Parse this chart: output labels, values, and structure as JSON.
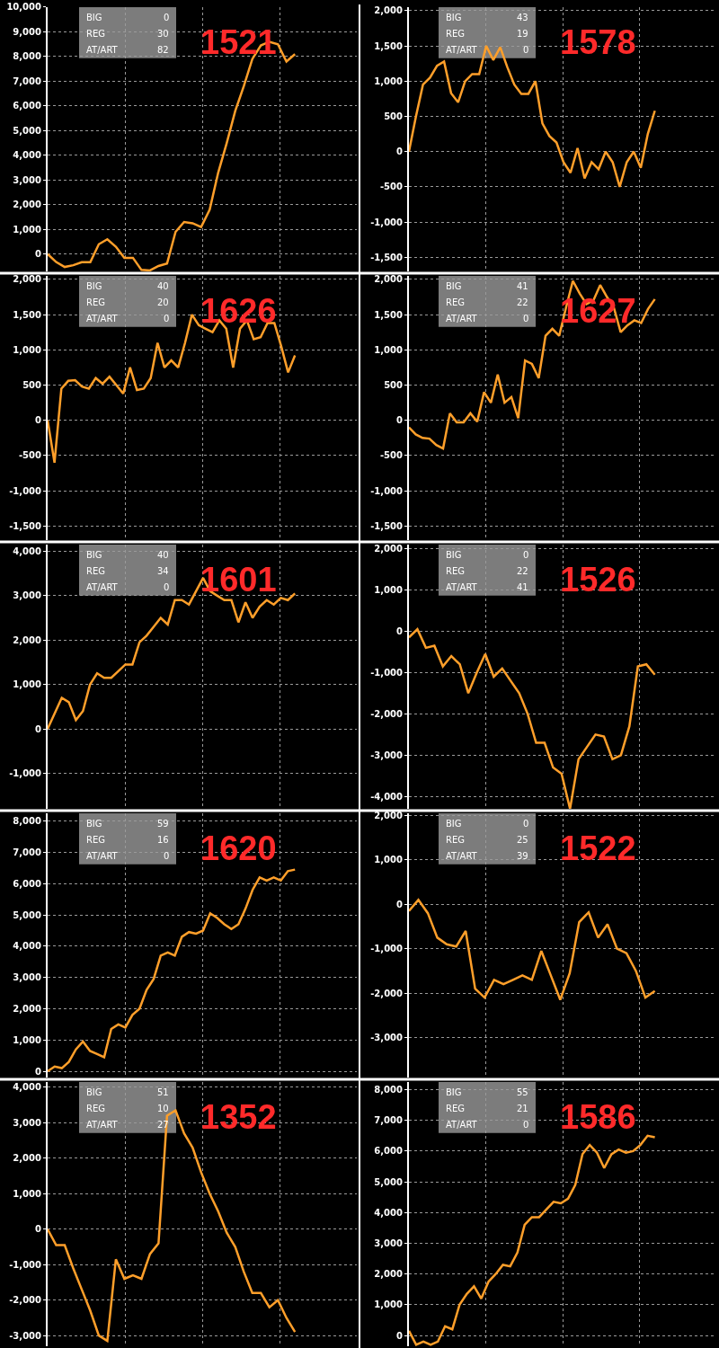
{
  "chart_data": [
    {
      "type": "line",
      "title": "1521",
      "annotations": [
        "BIG",
        "0",
        "REG",
        "30",
        "AT/ART",
        "82"
      ],
      "grid": true,
      "tick_labels": "y",
      "categories": [
        null,
        null,
        null,
        null,
        null,
        null,
        null,
        null,
        null,
        null,
        null,
        null,
        null,
        null,
        null,
        null,
        null,
        null,
        null,
        null,
        null,
        null,
        null,
        null,
        null,
        null,
        null,
        null,
        null,
        null
      ],
      "series": [
        {
          "color": "#ff9f2a",
          "values": [
            0,
            -320,
            -520,
            -450,
            -330,
            -330,
            400,
            600,
            300,
            -150,
            -150,
            -640,
            -660,
            -480,
            -380,
            900,
            1300,
            1250,
            1100,
            1800,
            3300,
            4500,
            5800,
            6800,
            7900,
            8450,
            8600,
            8500,
            7800,
            8100
          ]
        }
      ],
      "ylim": [
        -700,
        10000
      ],
      "yticks": [
        0,
        {
          "value": 1000,
          "label": "1,000"
        },
        {
          "value": 2000,
          "label": "2,000"
        },
        {
          "value": 3000,
          "label": "3,000"
        },
        {
          "value": 4000,
          "label": "4,000"
        },
        {
          "value": 5000,
          "label": "5,000"
        },
        {
          "value": 6000,
          "label": "6,000"
        },
        {
          "value": 7000,
          "label": "7,000"
        },
        {
          "value": 8000,
          "label": "8,000"
        },
        {
          "value": 9000,
          "label": "9,000"
        },
        {
          "value": 10000,
          "label": "10,000"
        }
      ]
    },
    {
      "type": "line",
      "title": "1578",
      "annotations": [
        "BIG",
        "43",
        "REG",
        "19",
        "AT/ART",
        "0"
      ],
      "grid": true,
      "tick_labels": "y",
      "categories": [
        null,
        null,
        null,
        null,
        null,
        null,
        null,
        null,
        null,
        null,
        null,
        null,
        null,
        null,
        null,
        null,
        null,
        null,
        null,
        null,
        null,
        null,
        null,
        null,
        null,
        null,
        null,
        null,
        null,
        null,
        null,
        null,
        null,
        null,
        null,
        null
      ],
      "series": [
        {
          "color": "#ff9f2a",
          "values": [
            0,
            500,
            950,
            1050,
            1220,
            1280,
            830,
            700,
            1000,
            1100,
            1100,
            1500,
            1300,
            1480,
            1200,
            950,
            820,
            820,
            1000,
            400,
            220,
            130,
            -150,
            -300,
            50,
            -380,
            -150,
            -250,
            0,
            -150,
            -500,
            -150,
            0,
            -230,
            250,
            580
          ]
        }
      ],
      "ylim": [
        -1700,
        2050
      ],
      "yticks": [
        {
          "value": -1500,
          "label": "-1,500"
        },
        {
          "value": -1000,
          "label": "-1,000"
        },
        -500,
        0,
        500,
        {
          "value": 1000,
          "label": "1,000"
        },
        {
          "value": 1500,
          "label": "1,500"
        },
        {
          "value": 2000,
          "label": "2,000"
        }
      ]
    },
    {
      "type": "line",
      "title": "1626",
      "annotations": [
        "BIG",
        "40",
        "REG",
        "20",
        "AT/ART",
        "0"
      ],
      "grid": true,
      "tick_labels": "y",
      "categories": [
        null,
        null,
        null,
        null,
        null,
        null,
        null,
        null,
        null,
        null,
        null,
        null,
        null,
        null,
        null,
        null,
        null,
        null,
        null,
        null,
        null,
        null,
        null,
        null,
        null,
        null,
        null,
        null,
        null,
        null,
        null,
        null,
        null,
        null,
        null,
        null,
        null
      ],
      "series": [
        {
          "color": "#ff9f2a",
          "values": [
            0,
            -600,
            450,
            560,
            570,
            480,
            450,
            600,
            520,
            620,
            500,
            380,
            750,
            430,
            450,
            600,
            1100,
            750,
            850,
            750,
            1100,
            1500,
            1350,
            1300,
            1250,
            1420,
            1300,
            750,
            1300,
            1420,
            1150,
            1180,
            1380,
            1380,
            1050,
            680,
            920
          ]
        }
      ],
      "ylim": [
        -1700,
        2050
      ],
      "yticks": [
        {
          "value": -1500,
          "label": "-1,500"
        },
        {
          "value": -1000,
          "label": "-1,000"
        },
        -500,
        0,
        500,
        {
          "value": 1000,
          "label": "1,000"
        },
        {
          "value": 1500,
          "label": "1,500"
        },
        {
          "value": 2000,
          "label": "2,000"
        }
      ]
    },
    {
      "type": "line",
      "title": "1627",
      "annotations": [
        "BIG",
        "41",
        "REG",
        "22",
        "AT/ART",
        "0"
      ],
      "grid": true,
      "tick_labels": "y",
      "categories": [
        null,
        null,
        null,
        null,
        null,
        null,
        null,
        null,
        null,
        null,
        null,
        null,
        null,
        null,
        null,
        null,
        null,
        null,
        null,
        null,
        null,
        null,
        null,
        null,
        null,
        null,
        null,
        null,
        null,
        null,
        null,
        null,
        null,
        null,
        null,
        null,
        null
      ],
      "series": [
        {
          "color": "#ff9f2a",
          "values": [
            -100,
            -200,
            -250,
            -260,
            -350,
            -400,
            100,
            -30,
            -30,
            100,
            -20,
            400,
            250,
            650,
            250,
            330,
            30,
            850,
            800,
            600,
            1200,
            1300,
            1200,
            1600,
            1980,
            1800,
            1650,
            1700,
            1920,
            1750,
            1600,
            1250,
            1350,
            1420,
            1380,
            1580,
            1720
          ]
        }
      ],
      "ylim": [
        -1700,
        2050
      ],
      "yticks": [
        {
          "value": -1500,
          "label": "-1,500"
        },
        {
          "value": -1000,
          "label": "-1,000"
        },
        -500,
        0,
        500,
        {
          "value": 1000,
          "label": "1,000"
        },
        {
          "value": 1500,
          "label": "1,500"
        },
        {
          "value": 2000,
          "label": "2,000"
        }
      ]
    },
    {
      "type": "line",
      "title": "1601",
      "annotations": [
        "BIG",
        "40",
        "REG",
        "34",
        "AT/ART",
        "0"
      ],
      "grid": true,
      "tick_labels": "y",
      "categories": [
        null,
        null,
        null,
        null,
        null,
        null,
        null,
        null,
        null,
        null,
        null,
        null,
        null,
        null,
        null,
        null,
        null,
        null,
        null,
        null,
        null,
        null,
        null,
        null,
        null,
        null,
        null,
        null,
        null,
        null,
        null,
        null,
        null,
        null,
        null,
        null
      ],
      "series": [
        {
          "color": "#ff9f2a",
          "values": [
            0,
            350,
            700,
            600,
            200,
            400,
            1000,
            1250,
            1150,
            1150,
            1300,
            1450,
            1450,
            1950,
            2100,
            2300,
            2500,
            2350,
            2900,
            2900,
            2800,
            3100,
            3400,
            3100,
            3000,
            2900,
            2900,
            2400,
            2850,
            2500,
            2750,
            2900,
            2800,
            2950,
            2900,
            3050
          ]
        }
      ],
      "ylim": [
        -1800,
        4150
      ],
      "yticks": [
        {
          "value": -1000,
          "label": "-1,000"
        },
        0,
        {
          "value": 1000,
          "label": "1,000"
        },
        {
          "value": 2000,
          "label": "2,000"
        },
        {
          "value": 3000,
          "label": "3,000"
        },
        {
          "value": 4000,
          "label": "4,000"
        }
      ]
    },
    {
      "type": "line",
      "title": "1526",
      "annotations": [
        "BIG",
        "0",
        "REG",
        "22",
        "AT/ART",
        "41"
      ],
      "grid": true,
      "tick_labels": "y",
      "categories": [
        null,
        null,
        null,
        null,
        null,
        null,
        null,
        null,
        null,
        null,
        null,
        null,
        null,
        null,
        null,
        null,
        null,
        null,
        null,
        null,
        null,
        null,
        null,
        null,
        null,
        null,
        null,
        null,
        null,
        null
      ],
      "series": [
        {
          "color": "#ff9f2a",
          "values": [
            -150,
            50,
            -400,
            -350,
            -850,
            -600,
            -800,
            -1500,
            -1000,
            -550,
            -1100,
            -900,
            -1200,
            -1500,
            -2000,
            -2700,
            -2700,
            -3300,
            -3450,
            -4300,
            -3100,
            -2800,
            -2500,
            -2550,
            -3100,
            -3000,
            -2300,
            -850,
            -800,
            -1050
          ]
        }
      ],
      "ylim": [
        -4300,
        2100
      ],
      "yticks": [
        {
          "value": -4000,
          "label": "-4,000"
        },
        {
          "value": -3000,
          "label": "-3,000"
        },
        {
          "value": -2000,
          "label": "-2,000"
        },
        {
          "value": -1000,
          "label": "-1,000"
        },
        0,
        {
          "value": 1000,
          "label": "1,000"
        },
        {
          "value": 2000,
          "label": "2,000"
        }
      ]
    },
    {
      "type": "line",
      "title": "1620",
      "annotations": [
        "BIG",
        "59",
        "REG",
        "16",
        "AT/ART",
        "0"
      ],
      "grid": true,
      "tick_labels": "y",
      "categories": [
        null,
        null,
        null,
        null,
        null,
        null,
        null,
        null,
        null,
        null,
        null,
        null,
        null,
        null,
        null,
        null,
        null,
        null,
        null,
        null,
        null,
        null,
        null,
        null,
        null,
        null,
        null,
        null,
        null,
        null,
        null,
        null,
        null,
        null,
        null,
        null
      ],
      "series": [
        {
          "color": "#ff9f2a",
          "values": [
            0,
            150,
            100,
            300,
            700,
            950,
            650,
            550,
            450,
            1350,
            1500,
            1400,
            1800,
            2000,
            2600,
            2950,
            3700,
            3800,
            3700,
            4300,
            4450,
            4400,
            4500,
            5050,
            4900,
            4700,
            4550,
            4700,
            5200,
            5800,
            6200,
            6100,
            6200,
            6100,
            6400,
            6450
          ]
        }
      ],
      "ylim": [
        -200,
        8250
      ],
      "yticks": [
        0,
        {
          "value": 1000,
          "label": "1,000"
        },
        {
          "value": 2000,
          "label": "2,000"
        },
        {
          "value": 3000,
          "label": "3,000"
        },
        {
          "value": 4000,
          "label": "4,000"
        },
        {
          "value": 5000,
          "label": "5,000"
        },
        {
          "value": 6000,
          "label": "6,000"
        },
        {
          "value": 7000,
          "label": "7,000"
        },
        {
          "value": 8000,
          "label": "8,000"
        }
      ]
    },
    {
      "type": "line",
      "title": "1522",
      "annotations": [
        "BIG",
        "0",
        "REG",
        "25",
        "AT/ART",
        "39"
      ],
      "grid": true,
      "tick_labels": "y",
      "categories": [
        null,
        null,
        null,
        null,
        null,
        null,
        null,
        null,
        null,
        null,
        null,
        null,
        null,
        null,
        null,
        null,
        null,
        null,
        null,
        null,
        null,
        null,
        null,
        null,
        null,
        null,
        null
      ],
      "series": [
        {
          "color": "#ff9f2a",
          "values": [
            -150,
            100,
            -200,
            -750,
            -900,
            -950,
            -600,
            -1900,
            -2100,
            -1700,
            -1800,
            -1700,
            -1600,
            -1700,
            -1050,
            -1600,
            -2150,
            -1550,
            -400,
            -180,
            -750,
            -450,
            -1000,
            -1100,
            -1500,
            -2100,
            -1950
          ]
        }
      ],
      "ylim": [
        -3900,
        2050
      ],
      "yticks": [
        {
          "value": -3000,
          "label": "-3,000"
        },
        {
          "value": -2000,
          "label": "-2,000"
        },
        {
          "value": -1000,
          "label": "-1,000"
        },
        0,
        {
          "value": 1000,
          "label": "1,000"
        },
        {
          "value": 2000,
          "label": "2,000"
        }
      ]
    },
    {
      "type": "line",
      "title": "1352",
      "annotations": [
        "BIG",
        "51",
        "REG",
        "10",
        "AT/ART",
        "27"
      ],
      "grid": true,
      "tick_labels": "y",
      "categories": [
        null,
        null,
        null,
        null,
        null,
        null,
        null,
        null,
        null,
        null,
        null,
        null,
        null,
        null,
        null,
        null,
        null,
        null,
        null,
        null,
        null,
        null,
        null,
        null,
        null,
        null,
        null,
        null,
        null,
        null
      ],
      "series": [
        {
          "color": "#ff9f2a",
          "values": [
            0,
            -450,
            -450,
            -1100,
            -1700,
            -2300,
            -3000,
            -3150,
            -850,
            -1400,
            -1300,
            -1400,
            -700,
            -400,
            3200,
            3350,
            2700,
            2300,
            1600,
            1000,
            500,
            -100,
            -500,
            -1200,
            -1800,
            -1800,
            -2200,
            -2000,
            -2500,
            -2900
          ]
        }
      ],
      "ylim": [
        -3300,
        4150
      ],
      "yticks": [
        {
          "value": -3000,
          "label": "-3,000"
        },
        {
          "value": -2000,
          "label": "-2,000"
        },
        {
          "value": -1000,
          "label": "-1,000"
        },
        0,
        {
          "value": 1000,
          "label": "1,000"
        },
        {
          "value": 2000,
          "label": "2,000"
        },
        {
          "value": 3000,
          "label": "3,000"
        },
        {
          "value": 4000,
          "label": "4,000"
        }
      ]
    },
    {
      "type": "line",
      "title": "1586",
      "annotations": [
        "BIG",
        "55",
        "REG",
        "21",
        "AT/ART",
        "0"
      ],
      "grid": true,
      "tick_labels": "y",
      "categories": [
        null,
        null,
        null,
        null,
        null,
        null,
        null,
        null,
        null,
        null,
        null,
        null,
        null,
        null,
        null,
        null,
        null,
        null,
        null,
        null,
        null,
        null,
        null,
        null,
        null,
        null,
        null,
        null,
        null,
        null,
        null,
        null,
        null,
        null,
        null
      ],
      "series": [
        {
          "color": "#ff9f2a",
          "values": [
            150,
            -300,
            -200,
            -300,
            -200,
            300,
            200,
            1000,
            1350,
            1600,
            1200,
            1750,
            2000,
            2300,
            2250,
            2700,
            3600,
            3850,
            3850,
            4100,
            4350,
            4300,
            4450,
            4900,
            5900,
            6200,
            5950,
            5450,
            5900,
            6050,
            5950,
            6000,
            6200,
            6500,
            6450
          ]
        }
      ],
      "ylim": [
        -350,
        8250
      ],
      "yticks": [
        0,
        {
          "value": 1000,
          "label": "1,000"
        },
        {
          "value": 2000,
          "label": "2,000"
        },
        {
          "value": 3000,
          "label": "3,000"
        },
        {
          "value": 4000,
          "label": "4,000"
        },
        {
          "value": 5000,
          "label": "5,000"
        },
        {
          "value": 6000,
          "label": "6,000"
        },
        {
          "value": 7000,
          "label": "7,000"
        },
        {
          "value": 8000,
          "label": "8,000"
        }
      ]
    }
  ]
}
